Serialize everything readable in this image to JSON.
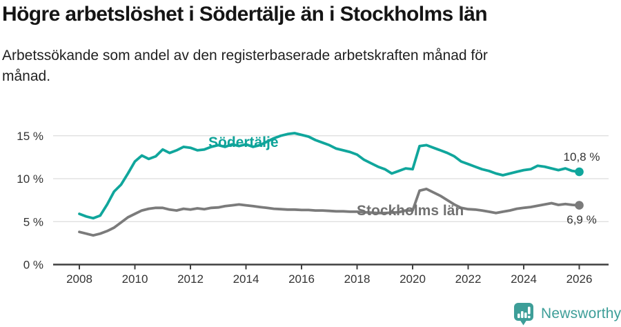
{
  "header": {
    "title": "Högre arbetslöshet i Södertälje än i Stockholms län",
    "subtitle": "Arbetssökande som andel av den registerbaserade arbetskraften månad för månad.",
    "subtitle_line1": "Arbetssökande som andel av den registerbaserade arbetskraften månad för",
    "subtitle_line2": "månad."
  },
  "chart_data": {
    "type": "line",
    "title": "Högre arbetslöshet i Södertälje än i Stockholms län",
    "xlabel": "",
    "ylabel": "Arbetssökande som andel av den registerbaserade arbetskraften",
    "y_unit": "%",
    "ylim": [
      0,
      16.3
    ],
    "xlim": [
      2007.05,
      2027.05
    ],
    "grid": "horizontal",
    "legend_position": "inline-labels",
    "x": [
      2008,
      2008.25,
      2008.5,
      2008.75,
      2009,
      2009.25,
      2009.5,
      2009.75,
      2010,
      2010.25,
      2010.5,
      2010.75,
      2011,
      2011.25,
      2011.5,
      2011.75,
      2012,
      2012.25,
      2012.5,
      2012.75,
      2013,
      2013.25,
      2013.5,
      2013.75,
      2014,
      2014.25,
      2014.5,
      2014.75,
      2015,
      2015.25,
      2015.5,
      2015.75,
      2016,
      2016.25,
      2016.5,
      2016.75,
      2017,
      2017.25,
      2017.5,
      2017.75,
      2018,
      2018.25,
      2018.5,
      2018.75,
      2019,
      2019.25,
      2019.5,
      2019.75,
      2020,
      2020.25,
      2020.5,
      2020.75,
      2021,
      2021.25,
      2021.5,
      2021.75,
      2022,
      2022.25,
      2022.5,
      2022.75,
      2023,
      2023.25,
      2023.5,
      2023.75,
      2024,
      2024.25,
      2024.5,
      2024.75,
      2025,
      2025.25,
      2025.5,
      2025.75,
      2026
    ],
    "x_ticks": [
      {
        "value": 2008,
        "label": "2008"
      },
      {
        "value": 2010,
        "label": "2010"
      },
      {
        "value": 2012,
        "label": "2012"
      },
      {
        "value": 2014,
        "label": "2014"
      },
      {
        "value": 2016,
        "label": "2016"
      },
      {
        "value": 2018,
        "label": "2018"
      },
      {
        "value": 2020,
        "label": "2020"
      },
      {
        "value": 2022,
        "label": "2022"
      },
      {
        "value": 2024,
        "label": "2024"
      },
      {
        "value": 2026,
        "label": "2026"
      }
    ],
    "y_ticks": [
      {
        "value": 0,
        "label": "0 %"
      },
      {
        "value": 5,
        "label": "5 %"
      },
      {
        "value": 10,
        "label": "10 %"
      },
      {
        "value": 15,
        "label": "15 %"
      }
    ],
    "series": [
      {
        "name": "Södertälje",
        "slug": "sodertalje",
        "color": "#10A69C",
        "label_color": "#0FA399",
        "end_label": "10,8 %",
        "end_value": 10.8,
        "values": [
          5.9,
          5.6,
          5.4,
          5.7,
          7.0,
          8.5,
          9.3,
          10.6,
          12.0,
          12.7,
          12.3,
          12.6,
          13.4,
          13.0,
          13.3,
          13.7,
          13.6,
          13.3,
          13.4,
          13.7,
          13.9,
          13.7,
          14.0,
          13.8,
          14.0,
          13.7,
          13.9,
          14.3,
          14.7,
          15.0,
          15.2,
          15.3,
          15.1,
          14.9,
          14.5,
          14.2,
          13.9,
          13.5,
          13.3,
          13.1,
          12.8,
          12.2,
          11.8,
          11.4,
          11.1,
          10.6,
          10.9,
          11.2,
          11.1,
          13.8,
          13.9,
          13.6,
          13.3,
          13.0,
          12.6,
          12.0,
          11.7,
          11.4,
          11.1,
          10.9,
          10.6,
          10.4,
          10.6,
          10.8,
          11.0,
          11.1,
          11.5,
          11.4,
          11.2,
          11.0,
          11.2,
          10.9,
          10.8
        ]
      },
      {
        "name": "Stockholms län",
        "slug": "stockholms-lan",
        "color": "#7B7B7B",
        "label_color": "#717171",
        "end_label": "6,9 %",
        "end_value": 6.9,
        "values": [
          3.8,
          3.6,
          3.4,
          3.6,
          3.9,
          4.3,
          4.9,
          5.5,
          5.9,
          6.3,
          6.5,
          6.6,
          6.6,
          6.4,
          6.3,
          6.5,
          6.4,
          6.55,
          6.45,
          6.6,
          6.65,
          6.8,
          6.9,
          7.0,
          6.9,
          6.8,
          6.7,
          6.6,
          6.5,
          6.45,
          6.4,
          6.4,
          6.35,
          6.35,
          6.3,
          6.3,
          6.25,
          6.2,
          6.2,
          6.15,
          6.15,
          6.1,
          6.05,
          6.0,
          6.0,
          6.05,
          6.1,
          6.3,
          6.3,
          8.6,
          8.8,
          8.4,
          8.0,
          7.5,
          7.0,
          6.6,
          6.45,
          6.4,
          6.3,
          6.15,
          6.0,
          6.15,
          6.3,
          6.5,
          6.6,
          6.7,
          6.85,
          7.0,
          7.15,
          6.95,
          7.05,
          6.95,
          6.9
        ]
      }
    ],
    "colors": {
      "gridline": "#DCDCDC",
      "axis": "#3F3F3F",
      "axis_text": "#333333",
      "annotation_text": "#333333"
    }
  },
  "footer": {
    "brand": "Newsworthy",
    "brand_color": "#3D9E98"
  }
}
